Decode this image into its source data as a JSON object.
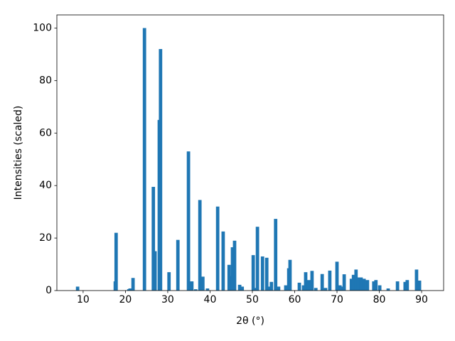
{
  "chart_data": {
    "type": "bar",
    "xlabel": "2θ (°)",
    "ylabel": "Intensities (scaled)",
    "color": "#1f77b4",
    "x": [
      8.7,
      17.6,
      17.8,
      20.8,
      21.1,
      21.8,
      24.5,
      26.6,
      27.0,
      28.0,
      28.3,
      30.3,
      32.4,
      34.9,
      35.7,
      36.6,
      37.6,
      38.3,
      39.4,
      41.8,
      43.1,
      44.5,
      44.8,
      45.3,
      45.8,
      47.0,
      47.6,
      50.2,
      50.7,
      51.2,
      52.4,
      53.4,
      54.0,
      54.5,
      55.5,
      56.2,
      57.9,
      58.6,
      58.9,
      61.1,
      62.1,
      62.6,
      63.3,
      64.1,
      65.0,
      66.5,
      67.3,
      68.3,
      70.0,
      70.7,
      71.0,
      71.7,
      73.4,
      73.9,
      74.5,
      75.0,
      75.7,
      76.4,
      77.2,
      78.7,
      79.2,
      80.1,
      82.1,
      84.3,
      86.1,
      86.6,
      88.8,
      89.5
    ],
    "values": [
      1.5,
      3.5,
      22,
      0.5,
      0.8,
      4.8,
      100,
      39.5,
      15,
      65,
      92,
      7,
      19.3,
      53,
      3.5,
      0.5,
      34.5,
      5.3,
      0.8,
      32,
      22.5,
      9.8,
      5.5,
      16.5,
      19,
      2.2,
      1.5,
      13.5,
      1,
      24.3,
      13,
      12.5,
      1.5,
      3.3,
      27.3,
      1.5,
      2,
      8.5,
      11.7,
      3,
      2,
      7,
      4,
      7.5,
      1,
      6.3,
      1,
      7.6,
      11,
      2,
      1.5,
      6.2,
      4.5,
      6,
      8,
      5,
      5,
      4.5,
      4,
      3.5,
      4,
      2,
      0.8,
      3.5,
      3.3,
      4,
      8,
      3.8
    ],
    "xlim": [
      3.8,
      95.2
    ],
    "ylim": [
      0,
      105
    ],
    "xticks": [
      10,
      20,
      30,
      40,
      50,
      60,
      70,
      80,
      90
    ],
    "yticks": [
      0,
      20,
      40,
      60,
      80,
      100
    ]
  }
}
